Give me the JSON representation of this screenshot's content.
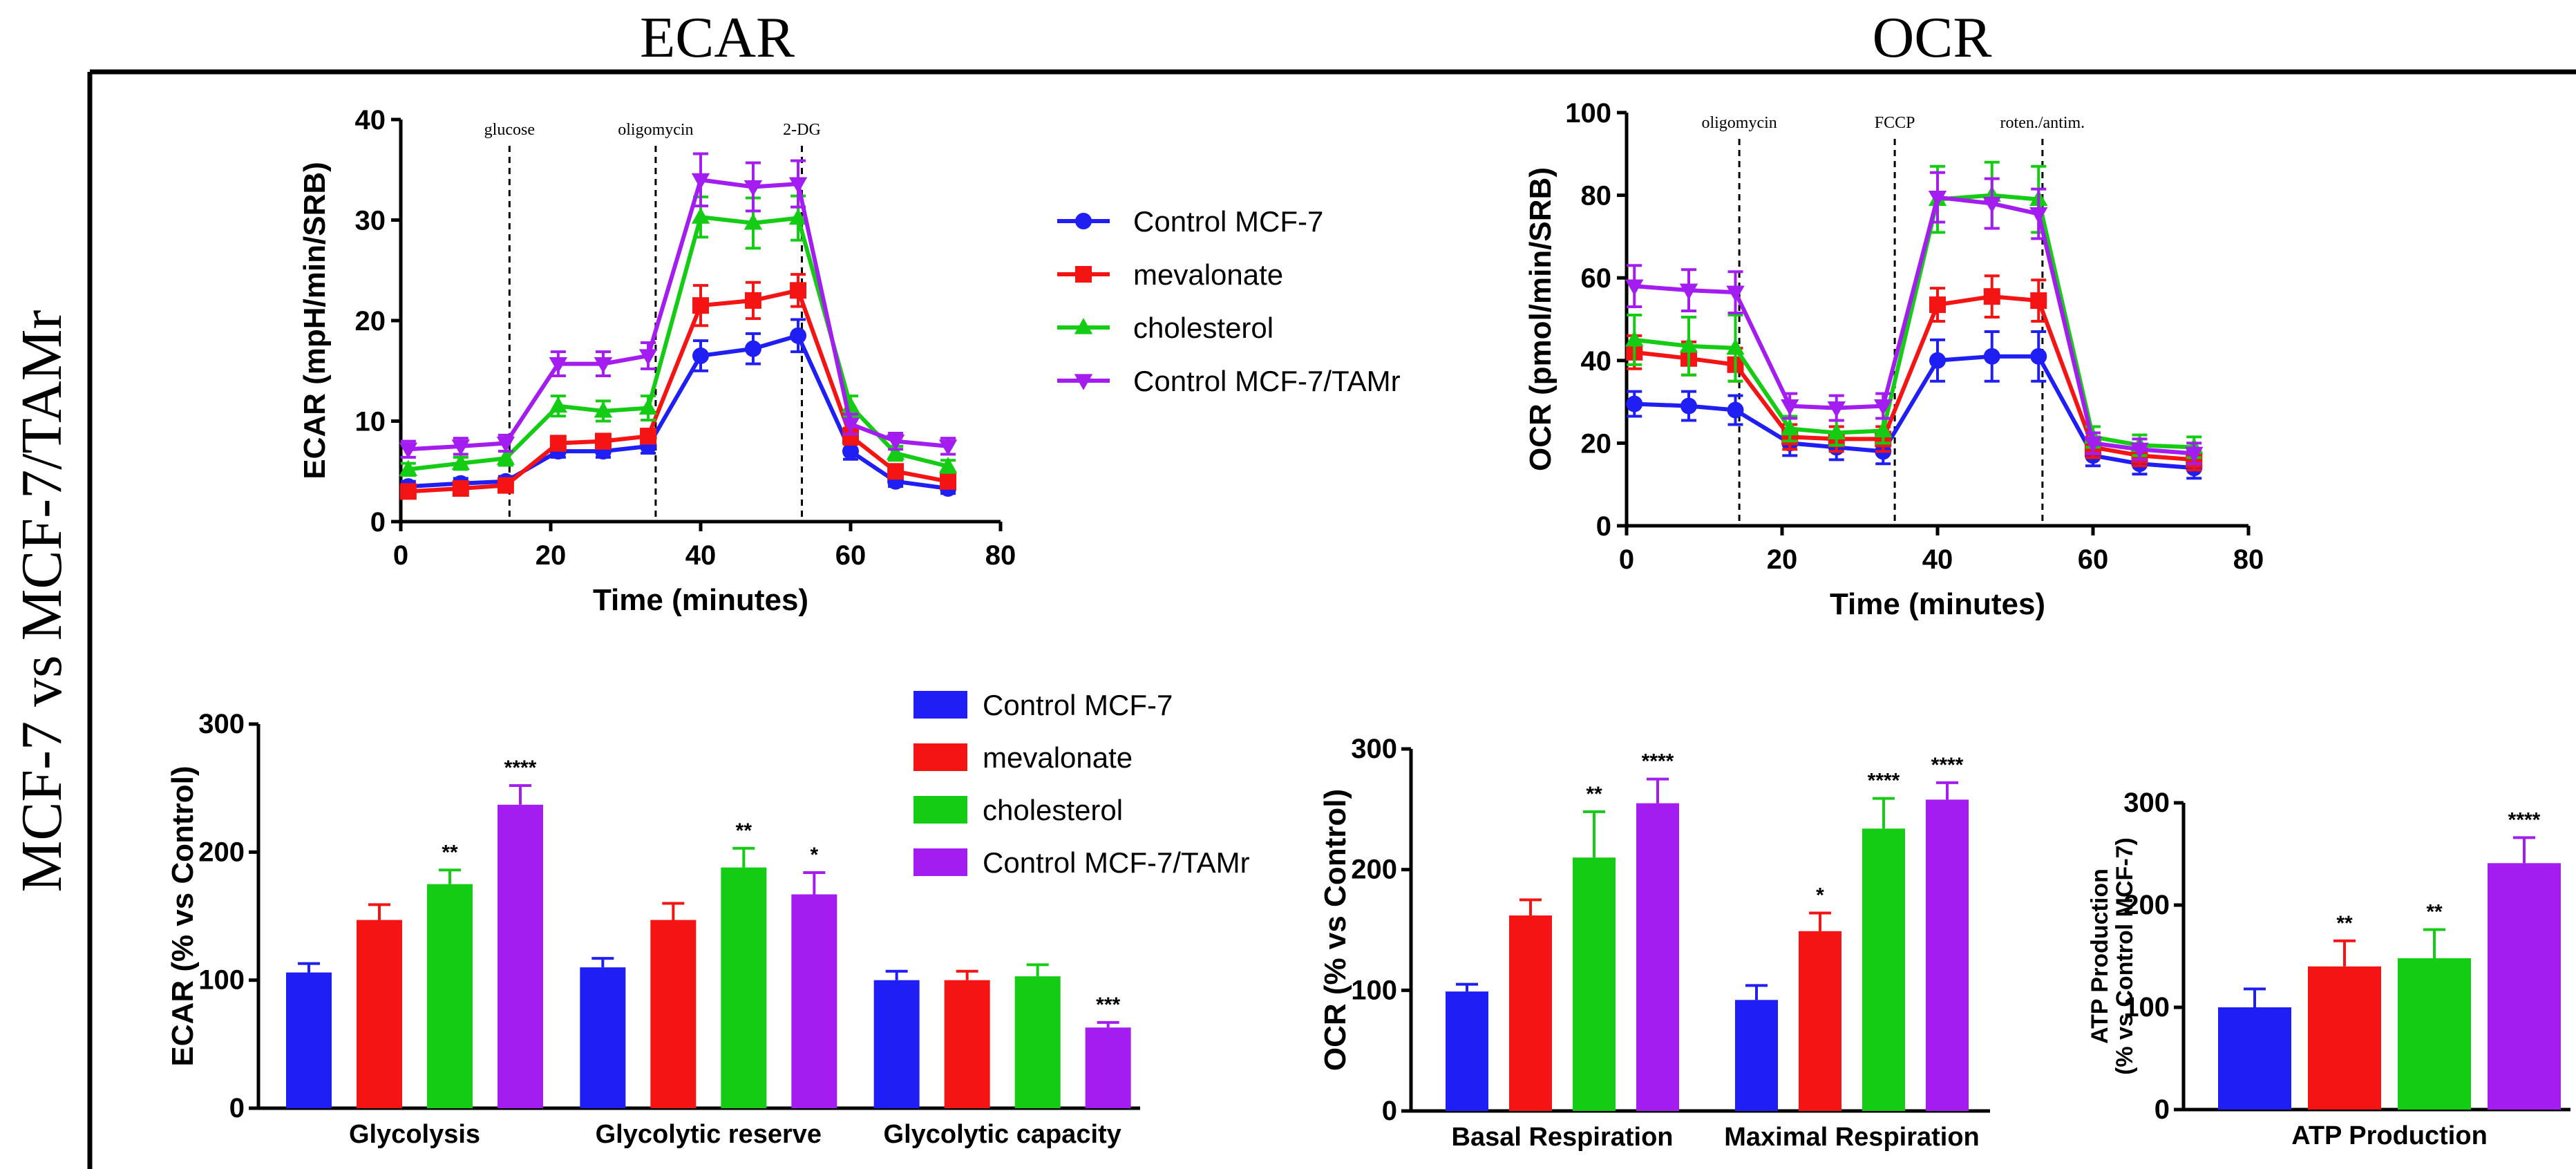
{
  "titles": {
    "ecar": "ECAR",
    "ocr": "OCR",
    "side": "MCF-7 vs MCF-7/TAMr"
  },
  "colors": {
    "Control MCF-7": "#1f1ff5",
    "mevalonate": "#f51414",
    "cholesterol": "#14cc14",
    "Control MCF-7/TAMr": "#a31cf0"
  },
  "legend_top": [
    "Control MCF-7",
    "mevalonate",
    "cholesterol",
    "Control MCF-7/TAMr"
  ],
  "legend_bottom": [
    "Control MCF-7",
    "mevalonate",
    "cholesterol",
    "Control MCF-7/TAMr"
  ],
  "chart_data": [
    {
      "id": "ecar_time",
      "type": "line",
      "ylabel": "ECAR (mpH/min/SRB)",
      "xlabel": "Time (minutes)",
      "xlim": [
        0,
        80
      ],
      "ylim": [
        0,
        40
      ],
      "xticks": [
        0,
        20,
        40,
        60,
        80
      ],
      "yticks": [
        0,
        10,
        20,
        30,
        40
      ],
      "x": [
        1,
        8,
        14,
        21,
        27,
        33,
        40,
        47,
        53,
        60,
        66,
        73
      ],
      "injections": [
        {
          "x": 14.5,
          "label": "glucose"
        },
        {
          "x": 34,
          "label": "oligomycin"
        },
        {
          "x": 53.5,
          "label": "2-DG"
        }
      ],
      "series": [
        {
          "name": "Control MCF-7",
          "marker": "circle",
          "values": [
            3.5,
            3.8,
            4,
            7,
            7,
            7.5,
            16.5,
            17.2,
            18.5,
            7,
            4,
            3.3
          ],
          "errors": [
            0.5,
            0.5,
            0.5,
            0.6,
            0.6,
            0.7,
            1.5,
            1.5,
            1.6,
            0.8,
            0.5,
            0.5
          ]
        },
        {
          "name": "mevalonate",
          "marker": "square",
          "values": [
            3,
            3.3,
            3.6,
            7.8,
            8,
            8.5,
            21.5,
            22,
            23,
            8.5,
            5,
            4
          ],
          "errors": [
            0.5,
            0.5,
            0.5,
            0.7,
            0.7,
            0.7,
            2,
            1.8,
            1.6,
            0.8,
            0.6,
            0.5
          ]
        },
        {
          "name": "cholesterol",
          "marker": "triangle-up",
          "values": [
            5.2,
            5.8,
            6.3,
            11.5,
            11,
            11.3,
            30.3,
            29.7,
            30.2,
            11.5,
            6.8,
            5.5
          ],
          "errors": [
            0.6,
            0.6,
            0.7,
            1,
            1,
            1.2,
            2,
            2.5,
            2.2,
            1,
            0.7,
            0.6
          ]
        },
        {
          "name": "Control MCF-7/TAMr",
          "marker": "triangle-down",
          "values": [
            7.2,
            7.5,
            7.8,
            15.7,
            15.7,
            16.5,
            34,
            33.3,
            33.6,
            9.7,
            8,
            7.5
          ],
          "errors": [
            0.8,
            0.8,
            0.8,
            1.2,
            1.2,
            1.3,
            2.6,
            2.4,
            2.3,
            1,
            0.8,
            0.8
          ]
        }
      ]
    },
    {
      "id": "ocr_time",
      "type": "line",
      "ylabel": "OCR (pmol/min/SRB)",
      "xlabel": "Time (minutes)",
      "xlim": [
        0,
        80
      ],
      "ylim": [
        0,
        100
      ],
      "xticks": [
        0,
        20,
        40,
        60,
        80
      ],
      "yticks": [
        0,
        20,
        40,
        60,
        80,
        100
      ],
      "x": [
        1,
        8,
        14,
        21,
        27,
        33,
        40,
        47,
        53,
        60,
        66,
        73
      ],
      "injections": [
        {
          "x": 14.5,
          "label": "oligomycin"
        },
        {
          "x": 34.5,
          "label": "FCCP"
        },
        {
          "x": 53.5,
          "label": "roten./antim."
        }
      ],
      "series": [
        {
          "name": "Control MCF-7",
          "marker": "circle",
          "values": [
            29.5,
            29,
            28,
            20,
            19,
            18,
            40,
            41,
            41,
            17,
            15,
            14
          ],
          "errors": [
            3,
            3.5,
            3.5,
            3,
            3,
            3,
            5,
            6,
            6,
            2.5,
            2.5,
            2.5
          ]
        },
        {
          "name": "mevalonate",
          "marker": "square",
          "values": [
            42,
            40.5,
            39,
            21.5,
            21,
            21,
            53.5,
            55.5,
            54.5,
            19,
            17,
            16
          ],
          "errors": [
            4,
            4,
            4,
            3,
            3,
            3,
            4,
            5,
            5,
            2.5,
            2.5,
            2.5
          ]
        },
        {
          "name": "cholesterol",
          "marker": "triangle-up",
          "values": [
            45,
            43.5,
            43,
            23.5,
            22.5,
            23,
            79,
            80,
            79,
            21.5,
            19.5,
            19
          ],
          "errors": [
            6,
            7,
            8,
            3,
            3,
            3,
            8,
            8,
            8,
            2.5,
            2.5,
            2.5
          ]
        },
        {
          "name": "Control MCF-7/TAMr",
          "marker": "triangle-down",
          "values": [
            58,
            57,
            56.5,
            29,
            28.5,
            29,
            79.5,
            78,
            75.5,
            20,
            18.5,
            17.5
          ],
          "errors": [
            5,
            5,
            5,
            3,
            3,
            3,
            6,
            6,
            6,
            2.5,
            2.5,
            2.5
          ]
        }
      ]
    },
    {
      "id": "ecar_bars",
      "type": "bar",
      "ylabel": "ECAR (% vs Control)",
      "ylim": [
        0,
        300
      ],
      "yticks": [
        0,
        100,
        200,
        300
      ],
      "categories": [
        "Glycolysis",
        "Glycolytic reserve",
        "Glycolytic capacity"
      ],
      "series": [
        {
          "name": "Control MCF-7",
          "values": [
            106,
            110,
            100
          ],
          "errors": [
            7,
            7,
            7
          ],
          "sig": [
            "",
            "",
            ""
          ]
        },
        {
          "name": "mevalonate",
          "values": [
            147,
            147,
            100
          ],
          "errors": [
            12,
            13,
            7
          ],
          "sig": [
            "",
            "",
            ""
          ]
        },
        {
          "name": "cholesterol",
          "values": [
            175,
            188,
            103
          ],
          "errors": [
            11,
            15,
            9
          ],
          "sig": [
            "**",
            "**",
            ""
          ]
        },
        {
          "name": "Control MCF-7/TAMr",
          "values": [
            237,
            167,
            63
          ],
          "errors": [
            15,
            17,
            4
          ],
          "sig": [
            "****",
            "*",
            "***"
          ]
        }
      ]
    },
    {
      "id": "ocr_bars",
      "type": "bar",
      "ylabel": "OCR (% vs Control)",
      "ylim": [
        0,
        300
      ],
      "yticks": [
        0,
        100,
        200,
        300
      ],
      "categories": [
        "Basal Respiration",
        "Maximal Respiration"
      ],
      "series": [
        {
          "name": "Control MCF-7",
          "values": [
            99,
            92
          ],
          "errors": [
            6,
            12
          ],
          "sig": [
            "",
            ""
          ]
        },
        {
          "name": "mevalonate",
          "values": [
            162,
            149
          ],
          "errors": [
            13,
            15
          ],
          "sig": [
            "",
            "*"
          ]
        },
        {
          "name": "cholesterol",
          "values": [
            210,
            234
          ],
          "errors": [
            38,
            25
          ],
          "sig": [
            "**",
            "****"
          ]
        },
        {
          "name": "Control MCF-7/TAMr",
          "values": [
            255,
            258
          ],
          "errors": [
            20,
            14
          ],
          "sig": [
            "****",
            "****"
          ]
        }
      ]
    },
    {
      "id": "atp_bars",
      "type": "bar",
      "ylabel_line1": "ATP Production",
      "ylabel_line2": "(% vs Control MCF-7)",
      "ylim": [
        0,
        300
      ],
      "yticks": [
        0,
        100,
        200,
        300
      ],
      "categories": [
        "ATP Production"
      ],
      "series": [
        {
          "name": "Control MCF-7",
          "values": [
            100
          ],
          "errors": [
            18
          ],
          "sig": [
            ""
          ]
        },
        {
          "name": "mevalonate",
          "values": [
            140
          ],
          "errors": [
            25
          ],
          "sig": [
            "**"
          ]
        },
        {
          "name": "cholesterol",
          "values": [
            148
          ],
          "errors": [
            28
          ],
          "sig": [
            "**"
          ]
        },
        {
          "name": "Control MCF-7/TAMr",
          "values": [
            241
          ],
          "errors": [
            25
          ],
          "sig": [
            "****"
          ]
        }
      ]
    }
  ]
}
